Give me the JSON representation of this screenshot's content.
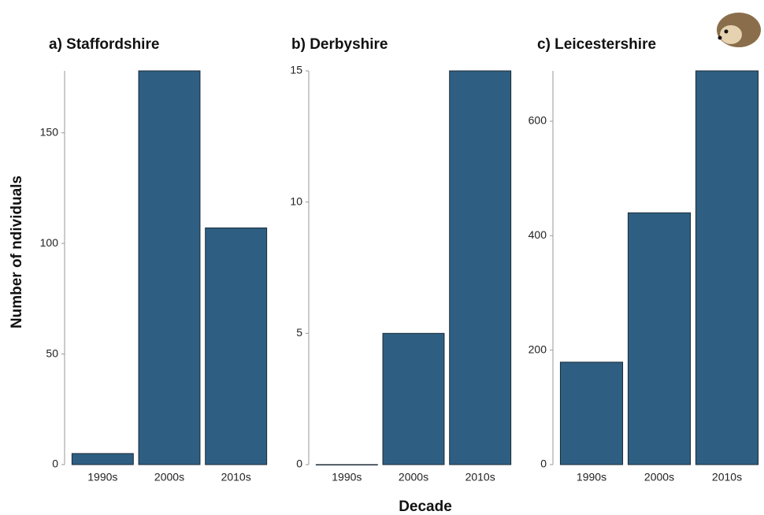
{
  "ylabel": "Number of ndividuals",
  "xlabel": "Decade",
  "chart_data": [
    {
      "type": "bar",
      "title": "a) Staffordshire",
      "categories": [
        "1990s",
        "2000s",
        "2010s"
      ],
      "values": [
        5,
        178,
        107
      ],
      "color": "#2e5f82",
      "ylim": [
        0,
        178
      ],
      "yticks": [
        0,
        50,
        100,
        150
      ]
    },
    {
      "type": "bar",
      "title": "b)  Derbyshire",
      "categories": [
        "1990s",
        "2000s",
        "2010s"
      ],
      "values": [
        0,
        5,
        15
      ],
      "color": "#2e5f82",
      "ylim": [
        0,
        15
      ],
      "yticks": [
        0,
        5,
        10,
        15
      ]
    },
    {
      "type": "bar",
      "title": "c) Leicestershire",
      "categories": [
        "1990s",
        "2000s",
        "2010s"
      ],
      "values": [
        179,
        440,
        688
      ],
      "color": "#2e5f82",
      "ylim": [
        0,
        688
      ],
      "yticks": [
        0,
        200,
        400,
        600
      ]
    }
  ]
}
